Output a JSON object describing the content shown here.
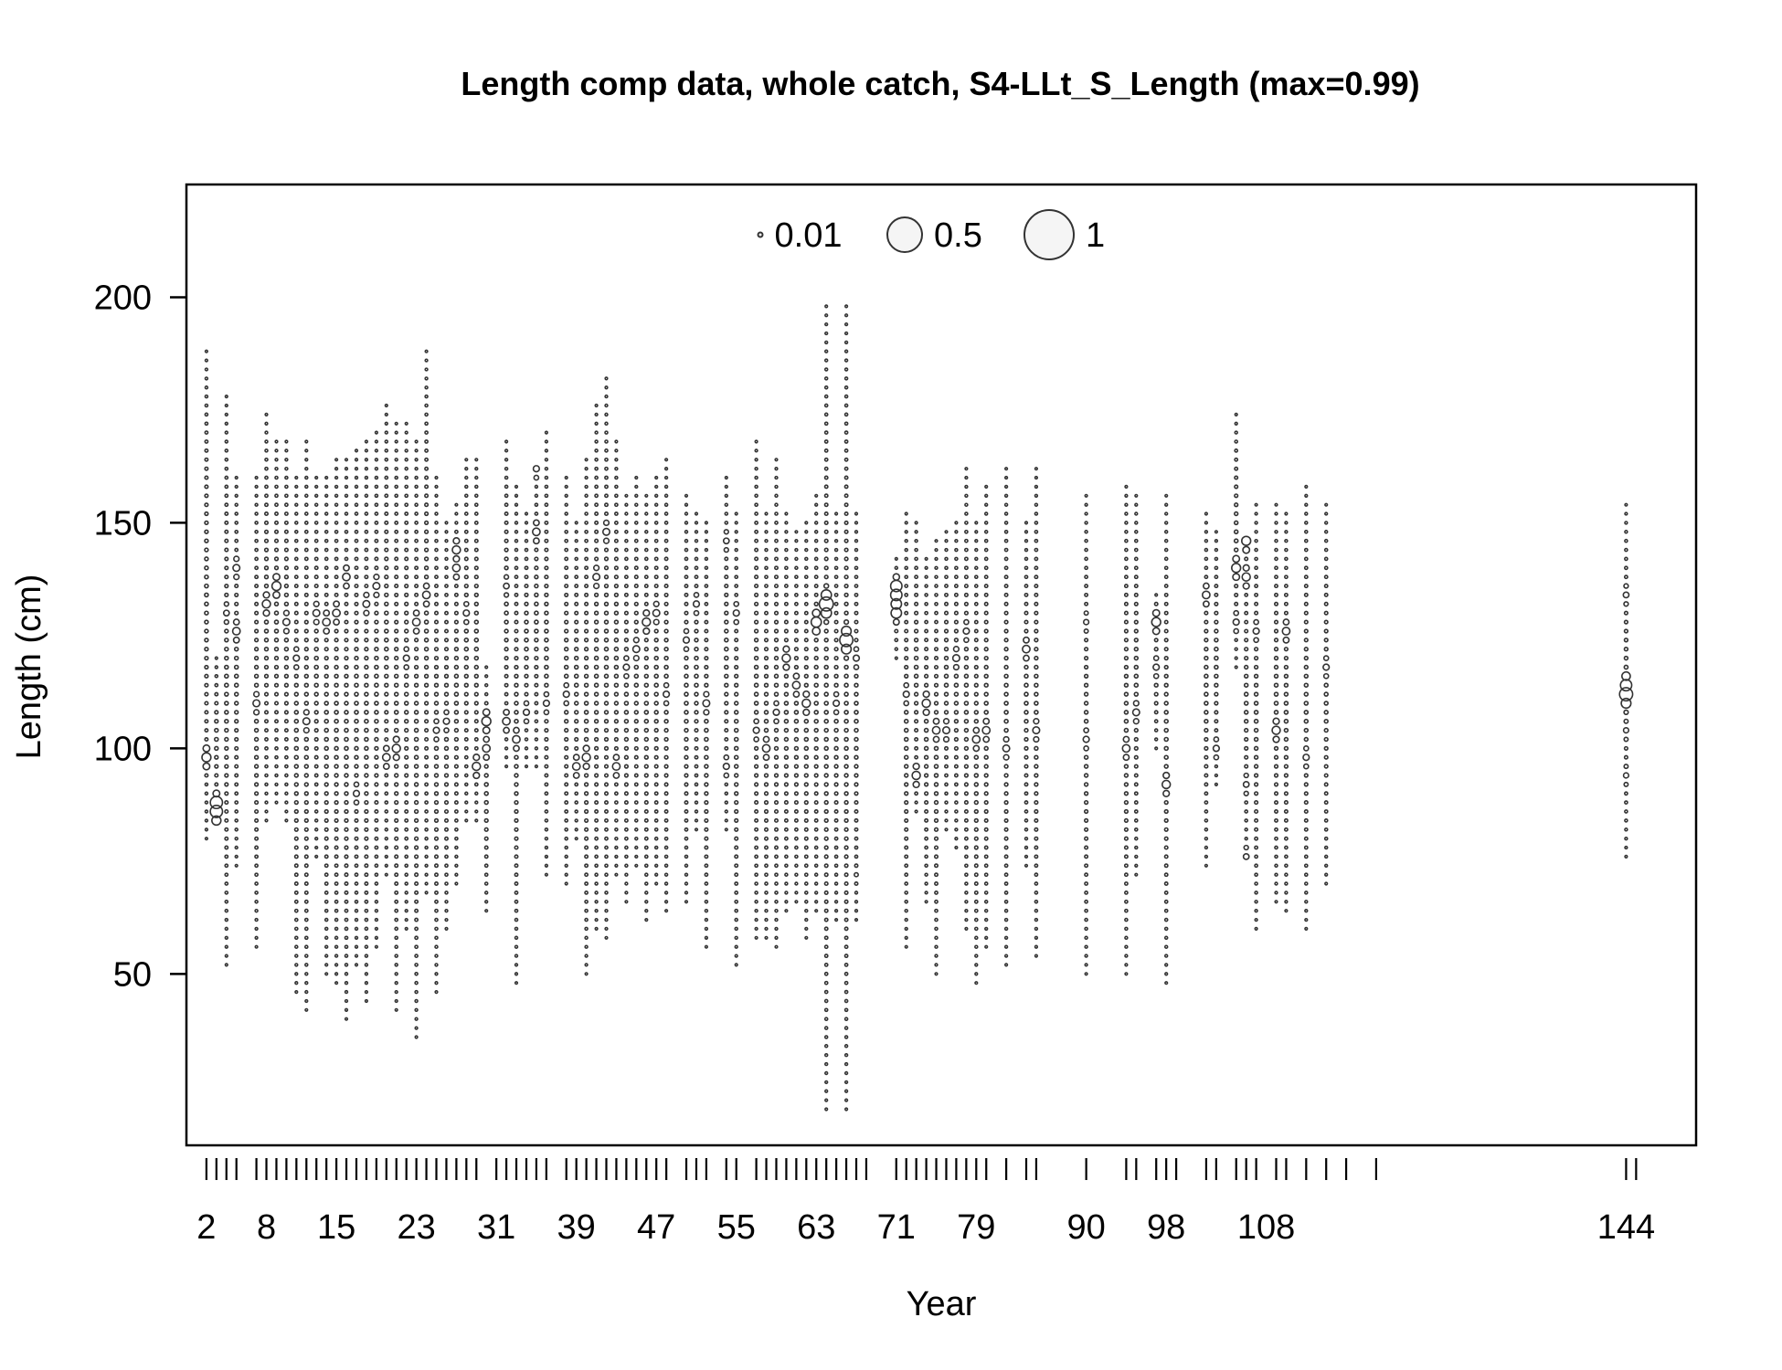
{
  "chart_data": {
    "type": "bubble",
    "title": "Length comp data, whole catch, S4-LLt_S_Length (max=0.99)",
    "xlabel": "Year",
    "ylabel": "Length (cm)",
    "xlim": [
      0,
      151
    ],
    "ylim": [
      12,
      225
    ],
    "x_tick_labels": [
      "2",
      "8",
      "15",
      "23",
      "31",
      "39",
      "47",
      "55",
      "63",
      "71",
      "79",
      "90",
      "98",
      "108",
      "144"
    ],
    "x_tick_values": [
      2,
      8,
      15,
      23,
      31,
      39,
      47,
      55,
      63,
      71,
      79,
      90,
      98,
      108,
      144
    ],
    "x_minor_ticks": [
      2,
      3,
      4,
      5,
      7,
      8,
      9,
      10,
      11,
      12,
      13,
      14,
      15,
      16,
      17,
      18,
      19,
      20,
      21,
      22,
      23,
      24,
      25,
      26,
      27,
      28,
      29,
      31,
      32,
      33,
      34,
      35,
      36,
      38,
      39,
      40,
      41,
      42,
      43,
      44,
      45,
      46,
      47,
      48,
      50,
      51,
      52,
      54,
      55,
      57,
      58,
      59,
      60,
      61,
      62,
      63,
      64,
      65,
      66,
      67,
      68,
      71,
      72,
      73,
      74,
      75,
      76,
      77,
      78,
      79,
      80,
      82,
      84,
      85,
      90,
      94,
      95,
      97,
      98,
      99,
      102,
      103,
      105,
      106,
      107,
      109,
      110,
      112,
      114,
      116,
      119,
      144,
      145
    ],
    "y_ticks": [
      50,
      100,
      150,
      200
    ],
    "legend": {
      "placement": "top",
      "entries": [
        {
          "label": "0.01",
          "value": 0.01
        },
        {
          "label": "0.5",
          "value": 0.5
        },
        {
          "label": "1",
          "value": 1
        }
      ]
    },
    "max_proportion": 0.99,
    "marker_color": "#333333",
    "grid": false,
    "columns": [
      {
        "x": 2,
        "min": 80,
        "max": 188,
        "peaks": [
          [
            98,
            0.15
          ]
        ]
      },
      {
        "x": 3,
        "min": 84,
        "max": 120,
        "peaks": [
          [
            87,
            0.35
          ],
          [
            86,
            0.3
          ]
        ]
      },
      {
        "x": 4,
        "min": 52,
        "max": 178,
        "peaks": [
          [
            130,
            0.05
          ]
        ]
      },
      {
        "x": 5,
        "min": 74,
        "max": 160,
        "peaks": [
          [
            126,
            0.1
          ],
          [
            140,
            0.08
          ]
        ]
      },
      {
        "x": 7,
        "min": 56,
        "max": 160,
        "peaks": [
          [
            110,
            0.08
          ]
        ]
      },
      {
        "x": 8,
        "min": 84,
        "max": 174,
        "peaks": [
          [
            132,
            0.12
          ]
        ]
      },
      {
        "x": 9,
        "min": 88,
        "max": 168,
        "peaks": [
          [
            136,
            0.15
          ]
        ]
      },
      {
        "x": 10,
        "min": 84,
        "max": 168,
        "peaks": [
          [
            128,
            0.08
          ]
        ]
      },
      {
        "x": 11,
        "min": 46,
        "max": 160,
        "peaks": [
          [
            120,
            0.06
          ]
        ]
      },
      {
        "x": 12,
        "min": 42,
        "max": 168,
        "peaks": [
          [
            106,
            0.08
          ]
        ]
      },
      {
        "x": 13,
        "min": 76,
        "max": 160,
        "peaks": [
          [
            130,
            0.08
          ]
        ]
      },
      {
        "x": 14,
        "min": 50,
        "max": 160,
        "peaks": [
          [
            128,
            0.1
          ]
        ]
      },
      {
        "x": 15,
        "min": 48,
        "max": 164,
        "peaks": [
          [
            130,
            0.1
          ]
        ]
      },
      {
        "x": 16,
        "min": 40,
        "max": 164,
        "peaks": [
          [
            138,
            0.1
          ]
        ]
      },
      {
        "x": 17,
        "min": 52,
        "max": 166,
        "peaks": [
          [
            90,
            0.06
          ]
        ]
      },
      {
        "x": 18,
        "min": 44,
        "max": 168,
        "peaks": [
          [
            132,
            0.08
          ]
        ]
      },
      {
        "x": 19,
        "min": 56,
        "max": 170,
        "peaks": [
          [
            136,
            0.08
          ]
        ]
      },
      {
        "x": 20,
        "min": 72,
        "max": 176,
        "peaks": [
          [
            98,
            0.1
          ]
        ]
      },
      {
        "x": 21,
        "min": 42,
        "max": 172,
        "peaks": [
          [
            100,
            0.12
          ]
        ]
      },
      {
        "x": 22,
        "min": 60,
        "max": 172,
        "peaks": [
          [
            120,
            0.06
          ]
        ]
      },
      {
        "x": 23,
        "min": 36,
        "max": 168,
        "peaks": [
          [
            128,
            0.1
          ]
        ]
      },
      {
        "x": 24,
        "min": 68,
        "max": 188,
        "peaks": [
          [
            134,
            0.1
          ]
        ]
      },
      {
        "x": 25,
        "min": 46,
        "max": 160,
        "peaks": [
          [
            104,
            0.06
          ]
        ]
      },
      {
        "x": 26,
        "min": 60,
        "max": 150,
        "peaks": [
          [
            106,
            0.06
          ]
        ]
      },
      {
        "x": 27,
        "min": 70,
        "max": 154,
        "peaks": [
          [
            144,
            0.12
          ],
          [
            140,
            0.1
          ]
        ]
      },
      {
        "x": 28,
        "min": 84,
        "max": 164,
        "peaks": [
          [
            130,
            0.06
          ]
        ]
      },
      {
        "x": 29,
        "min": 84,
        "max": 164,
        "peaks": [
          [
            96,
            0.12
          ]
        ]
      },
      {
        "x": 30,
        "min": 64,
        "max": 118,
        "peaks": [
          [
            106,
            0.15
          ],
          [
            100,
            0.1
          ]
        ]
      },
      {
        "x": 32,
        "min": 96,
        "max": 168,
        "peaks": [
          [
            106,
            0.1
          ],
          [
            136,
            0.05
          ]
        ]
      },
      {
        "x": 33,
        "min": 48,
        "max": 158,
        "peaks": [
          [
            102,
            0.1
          ]
        ]
      },
      {
        "x": 34,
        "min": 96,
        "max": 152,
        "peaks": [
          [
            108,
            0.06
          ]
        ]
      },
      {
        "x": 35,
        "min": 96,
        "max": 162,
        "peaks": [
          [
            148,
            0.1
          ],
          [
            162,
            0.06
          ]
        ]
      },
      {
        "x": 36,
        "min": 72,
        "max": 170,
        "peaks": [
          [
            110,
            0.06
          ]
        ]
      },
      {
        "x": 38,
        "min": 70,
        "max": 160,
        "peaks": [
          [
            112,
            0.06
          ]
        ]
      },
      {
        "x": 39,
        "min": 80,
        "max": 150,
        "peaks": [
          [
            96,
            0.1
          ]
        ]
      },
      {
        "x": 40,
        "min": 50,
        "max": 164,
        "peaks": [
          [
            98,
            0.12
          ]
        ]
      },
      {
        "x": 41,
        "min": 60,
        "max": 176,
        "peaks": [
          [
            138,
            0.08
          ]
        ]
      },
      {
        "x": 42,
        "min": 58,
        "max": 182,
        "peaks": [
          [
            148,
            0.08
          ]
        ]
      },
      {
        "x": 43,
        "min": 72,
        "max": 168,
        "peaks": [
          [
            96,
            0.1
          ]
        ]
      },
      {
        "x": 44,
        "min": 66,
        "max": 156,
        "peaks": [
          [
            118,
            0.06
          ]
        ]
      },
      {
        "x": 45,
        "min": 74,
        "max": 160,
        "peaks": [
          [
            122,
            0.08
          ]
        ]
      },
      {
        "x": 46,
        "min": 62,
        "max": 156,
        "peaks": [
          [
            128,
            0.12
          ]
        ]
      },
      {
        "x": 47,
        "min": 70,
        "max": 160,
        "peaks": [
          [
            130,
            0.08
          ]
        ]
      },
      {
        "x": 48,
        "min": 64,
        "max": 164,
        "peaks": [
          [
            112,
            0.06
          ]
        ]
      },
      {
        "x": 50,
        "min": 66,
        "max": 156,
        "peaks": [
          [
            124,
            0.06
          ]
        ]
      },
      {
        "x": 51,
        "min": 82,
        "max": 152,
        "peaks": [
          [
            132,
            0.06
          ]
        ]
      },
      {
        "x": 52,
        "min": 56,
        "max": 150,
        "peaks": [
          [
            110,
            0.08
          ]
        ]
      },
      {
        "x": 54,
        "min": 82,
        "max": 160,
        "peaks": [
          [
            96,
            0.06
          ],
          [
            146,
            0.05
          ]
        ]
      },
      {
        "x": 55,
        "min": 52,
        "max": 152,
        "peaks": [
          [
            130,
            0.06
          ]
        ]
      },
      {
        "x": 57,
        "min": 58,
        "max": 168,
        "peaks": [
          [
            104,
            0.06
          ]
        ]
      },
      {
        "x": 58,
        "min": 58,
        "max": 152,
        "peaks": [
          [
            100,
            0.1
          ]
        ]
      },
      {
        "x": 59,
        "min": 56,
        "max": 164,
        "peaks": [
          [
            108,
            0.06
          ]
        ]
      },
      {
        "x": 60,
        "min": 64,
        "max": 152,
        "peaks": [
          [
            120,
            0.12
          ]
        ]
      },
      {
        "x": 61,
        "min": 66,
        "max": 148,
        "peaks": [
          [
            114,
            0.1
          ]
        ]
      },
      {
        "x": 62,
        "min": 58,
        "max": 150,
        "peaks": [
          [
            110,
            0.12
          ]
        ]
      },
      {
        "x": 63,
        "min": 64,
        "max": 156,
        "peaks": [
          [
            128,
            0.2
          ]
        ]
      },
      {
        "x": 64,
        "min": 20,
        "max": 198,
        "peaks": [
          [
            132,
            0.4
          ]
        ]
      },
      {
        "x": 65,
        "min": 62,
        "max": 152,
        "peaks": [
          [
            110,
            0.06
          ]
        ]
      },
      {
        "x": 66,
        "min": 20,
        "max": 198,
        "peaks": [
          [
            124,
            0.35
          ]
        ]
      },
      {
        "x": 67,
        "min": 62,
        "max": 152,
        "peaks": [
          [
            120,
            0.06
          ],
          [
            72,
            0.02
          ]
        ]
      },
      {
        "x": 71,
        "min": 120,
        "max": 142,
        "peaks": [
          [
            135,
            0.3
          ],
          [
            131,
            0.25
          ]
        ]
      },
      {
        "x": 72,
        "min": 56,
        "max": 152,
        "peaks": [
          [
            112,
            0.06
          ]
        ]
      },
      {
        "x": 73,
        "min": 86,
        "max": 150,
        "peaks": [
          [
            94,
            0.12
          ]
        ]
      },
      {
        "x": 74,
        "min": 66,
        "max": 142,
        "peaks": [
          [
            110,
            0.12
          ]
        ]
      },
      {
        "x": 75,
        "min": 50,
        "max": 146,
        "peaks": [
          [
            104,
            0.1
          ]
        ]
      },
      {
        "x": 76,
        "min": 82,
        "max": 148,
        "peaks": [
          [
            104,
            0.08
          ]
        ]
      },
      {
        "x": 77,
        "min": 78,
        "max": 150,
        "peaks": [
          [
            120,
            0.08
          ]
        ]
      },
      {
        "x": 78,
        "min": 60,
        "max": 162,
        "peaks": [
          [
            126,
            0.06
          ]
        ]
      },
      {
        "x": 79,
        "min": 48,
        "max": 150,
        "peaks": [
          [
            102,
            0.1
          ]
        ]
      },
      {
        "x": 80,
        "min": 56,
        "max": 158,
        "peaks": [
          [
            104,
            0.1
          ]
        ]
      },
      {
        "x": 82,
        "min": 52,
        "max": 162,
        "peaks": [
          [
            100,
            0.08
          ]
        ]
      },
      {
        "x": 84,
        "min": 74,
        "max": 150,
        "peaks": [
          [
            122,
            0.1
          ]
        ]
      },
      {
        "x": 85,
        "min": 54,
        "max": 162,
        "peaks": [
          [
            104,
            0.08
          ]
        ]
      },
      {
        "x": 90,
        "min": 50,
        "max": 156,
        "peaks": [
          [
            102,
            0.06
          ],
          [
            128,
            0.04
          ]
        ]
      },
      {
        "x": 94,
        "min": 50,
        "max": 158,
        "peaks": [
          [
            100,
            0.1
          ]
        ]
      },
      {
        "x": 95,
        "min": 72,
        "max": 156,
        "peaks": [
          [
            108,
            0.08
          ]
        ]
      },
      {
        "x": 97,
        "min": 100,
        "max": 134,
        "peaks": [
          [
            128,
            0.15
          ],
          [
            118,
            0.06
          ]
        ]
      },
      {
        "x": 98,
        "min": 48,
        "max": 156,
        "peaks": [
          [
            92,
            0.12
          ]
        ]
      },
      {
        "x": 102,
        "min": 74,
        "max": 152,
        "peaks": [
          [
            134,
            0.1
          ]
        ]
      },
      {
        "x": 103,
        "min": 92,
        "max": 148,
        "peaks": [
          [
            100,
            0.06
          ]
        ]
      },
      {
        "x": 105,
        "min": 118,
        "max": 174,
        "peaks": [
          [
            140,
            0.15
          ],
          [
            128,
            0.06
          ]
        ]
      },
      {
        "x": 106,
        "min": 76,
        "max": 146,
        "peaks": [
          [
            146,
            0.15
          ],
          [
            138,
            0.12
          ],
          [
            92,
            0.05
          ],
          [
            76,
            0.05
          ]
        ]
      },
      {
        "x": 107,
        "min": 60,
        "max": 154,
        "peaks": [
          [
            126,
            0.06
          ]
        ]
      },
      {
        "x": 109,
        "min": 66,
        "max": 154,
        "peaks": [
          [
            104,
            0.12
          ]
        ]
      },
      {
        "x": 110,
        "min": 64,
        "max": 152,
        "peaks": [
          [
            126,
            0.1
          ]
        ]
      },
      {
        "x": 112,
        "min": 60,
        "max": 158,
        "peaks": [
          [
            98,
            0.06
          ]
        ]
      },
      {
        "x": 114,
        "min": 70,
        "max": 154,
        "peaks": [
          [
            118,
            0.06
          ]
        ]
      },
      {
        "x": 144,
        "min": 76,
        "max": 154,
        "peaks": [
          [
            112,
            0.35
          ],
          [
            114,
            0.25
          ],
          [
            134,
            0.05
          ],
          [
            104,
            0.04
          ],
          [
            94,
            0.04
          ]
        ]
      }
    ]
  }
}
